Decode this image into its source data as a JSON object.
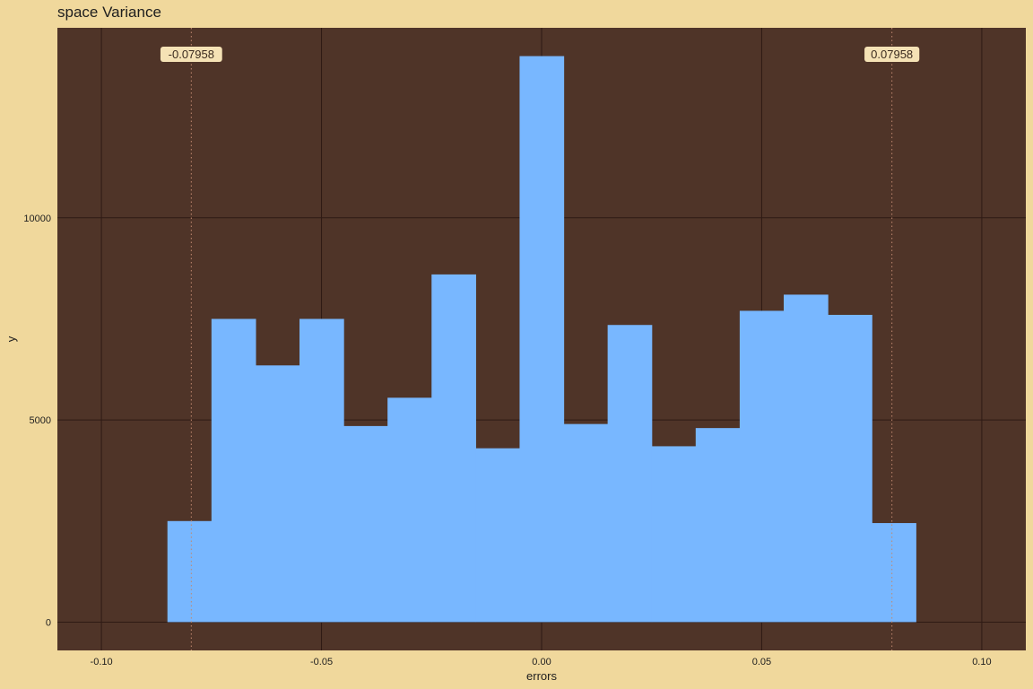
{
  "chart_data": {
    "type": "bar",
    "title": "space Variance",
    "xlabel": "errors",
    "ylabel": "y",
    "xlim": [
      -0.11,
      0.11
    ],
    "ylim": [
      -700,
      14700
    ],
    "x_ticks": [
      -0.1,
      -0.05,
      0.0,
      0.05,
      0.1
    ],
    "x_tick_labels": [
      "-0.10",
      "-0.05",
      "0.00",
      "0.05",
      "0.10"
    ],
    "y_ticks": [
      0,
      5000,
      10000
    ],
    "y_tick_labels": [
      "0",
      "5000",
      "10000"
    ],
    "grid": true,
    "bin_width": 0.01,
    "bins": [
      {
        "x": -0.08,
        "y": 2500
      },
      {
        "x": -0.07,
        "y": 7500
      },
      {
        "x": -0.06,
        "y": 6350
      },
      {
        "x": -0.05,
        "y": 7500
      },
      {
        "x": -0.04,
        "y": 4850
      },
      {
        "x": -0.03,
        "y": 5550
      },
      {
        "x": -0.02,
        "y": 8600
      },
      {
        "x": -0.01,
        "y": 4300
      },
      {
        "x": 0.0,
        "y": 14000
      },
      {
        "x": 0.01,
        "y": 4900
      },
      {
        "x": 0.02,
        "y": 7350
      },
      {
        "x": 0.03,
        "y": 4350
      },
      {
        "x": 0.04,
        "y": 4800
      },
      {
        "x": 0.05,
        "y": 7700
      },
      {
        "x": 0.06,
        "y": 8100
      },
      {
        "x": 0.07,
        "y": 7600
      },
      {
        "x": 0.08,
        "y": 2450
      }
    ],
    "reference_lines": [
      {
        "x": -0.07958,
        "label": "-0.07958"
      },
      {
        "x": 0.07958,
        "label": "0.07958"
      }
    ],
    "colors": {
      "page_background": "#f0d89c",
      "panel_background": "#4f3428",
      "grid": "#2e1a14",
      "bars": "#78b7ff",
      "reference_line": "#c08870",
      "label_fill": "#f5e2b5"
    }
  }
}
